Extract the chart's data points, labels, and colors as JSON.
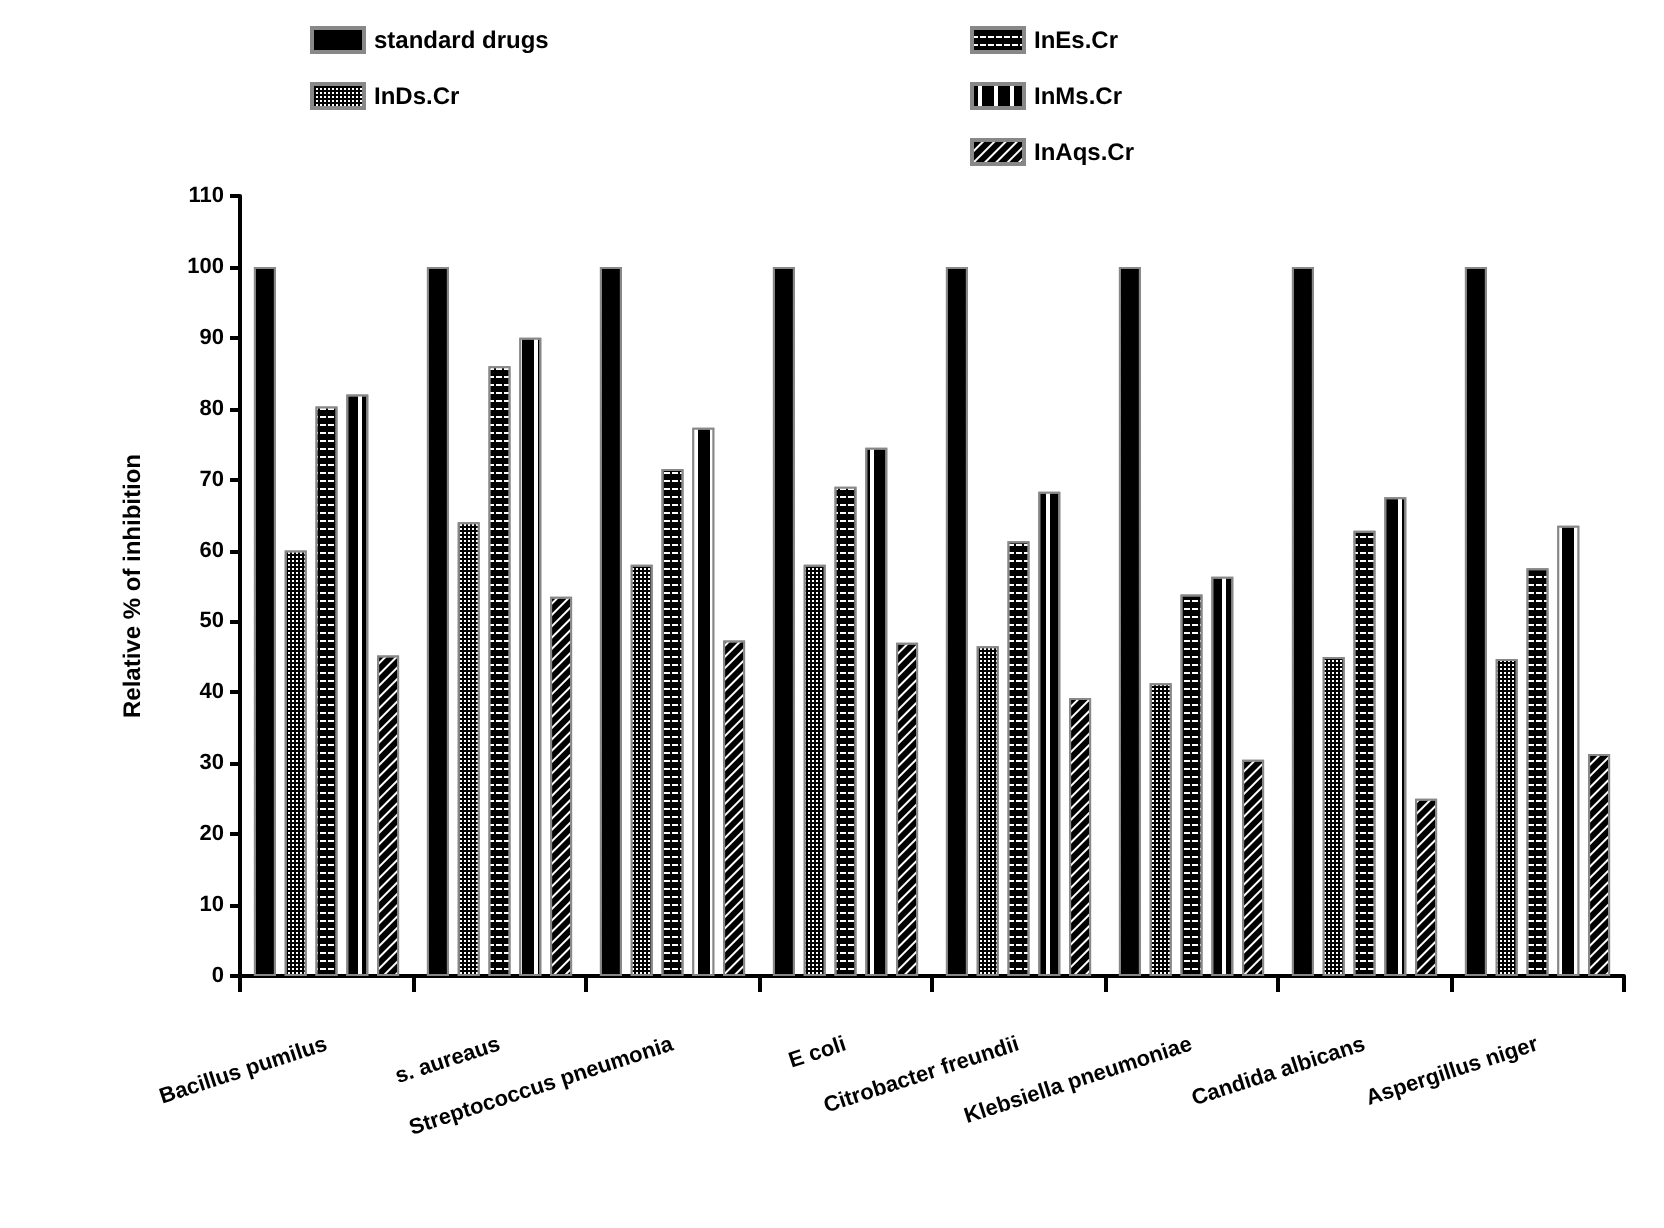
{
  "chart_data": {
    "type": "bar",
    "ylabel": "Relative % of inhibition",
    "categories": [
      "Bacillus pumilus",
      "s. aureaus",
      "Streptococcus pneumonia",
      "E coli",
      "Citrobacter freundii",
      "Klebsiella pneumoniae",
      "Candida albicans",
      "Aspergillus niger"
    ],
    "series": [
      {
        "name": "standard drugs",
        "color": "#000000",
        "values": [
          100,
          100,
          100,
          100,
          100,
          100,
          100,
          100
        ]
      },
      {
        "name": "InDs.Cr",
        "color": "#000000",
        "values": [
          60,
          64,
          58,
          58,
          46.5,
          41.3,
          45,
          44.7
        ]
      },
      {
        "name": "InEs.Cr",
        "color": "#000000",
        "values": [
          80.3,
          86,
          71.5,
          69,
          61.3,
          53.8,
          62.8,
          57.5
        ]
      },
      {
        "name": "InMs.Cr",
        "color": "#000000",
        "values": [
          82,
          90,
          77.3,
          74.5,
          68.3,
          56.3,
          67.5,
          63.5
        ]
      },
      {
        "name": "InAqs.Cr",
        "color": "#000000",
        "values": [
          45.2,
          53.5,
          47.3,
          47,
          39.2,
          30.5,
          25,
          31.3
        ]
      }
    ],
    "ylim": [
      0,
      110
    ],
    "yticks": [
      0,
      10,
      20,
      30,
      40,
      50,
      60,
      70,
      80,
      90,
      100,
      110
    ],
    "grid": false,
    "legend": "top"
  }
}
